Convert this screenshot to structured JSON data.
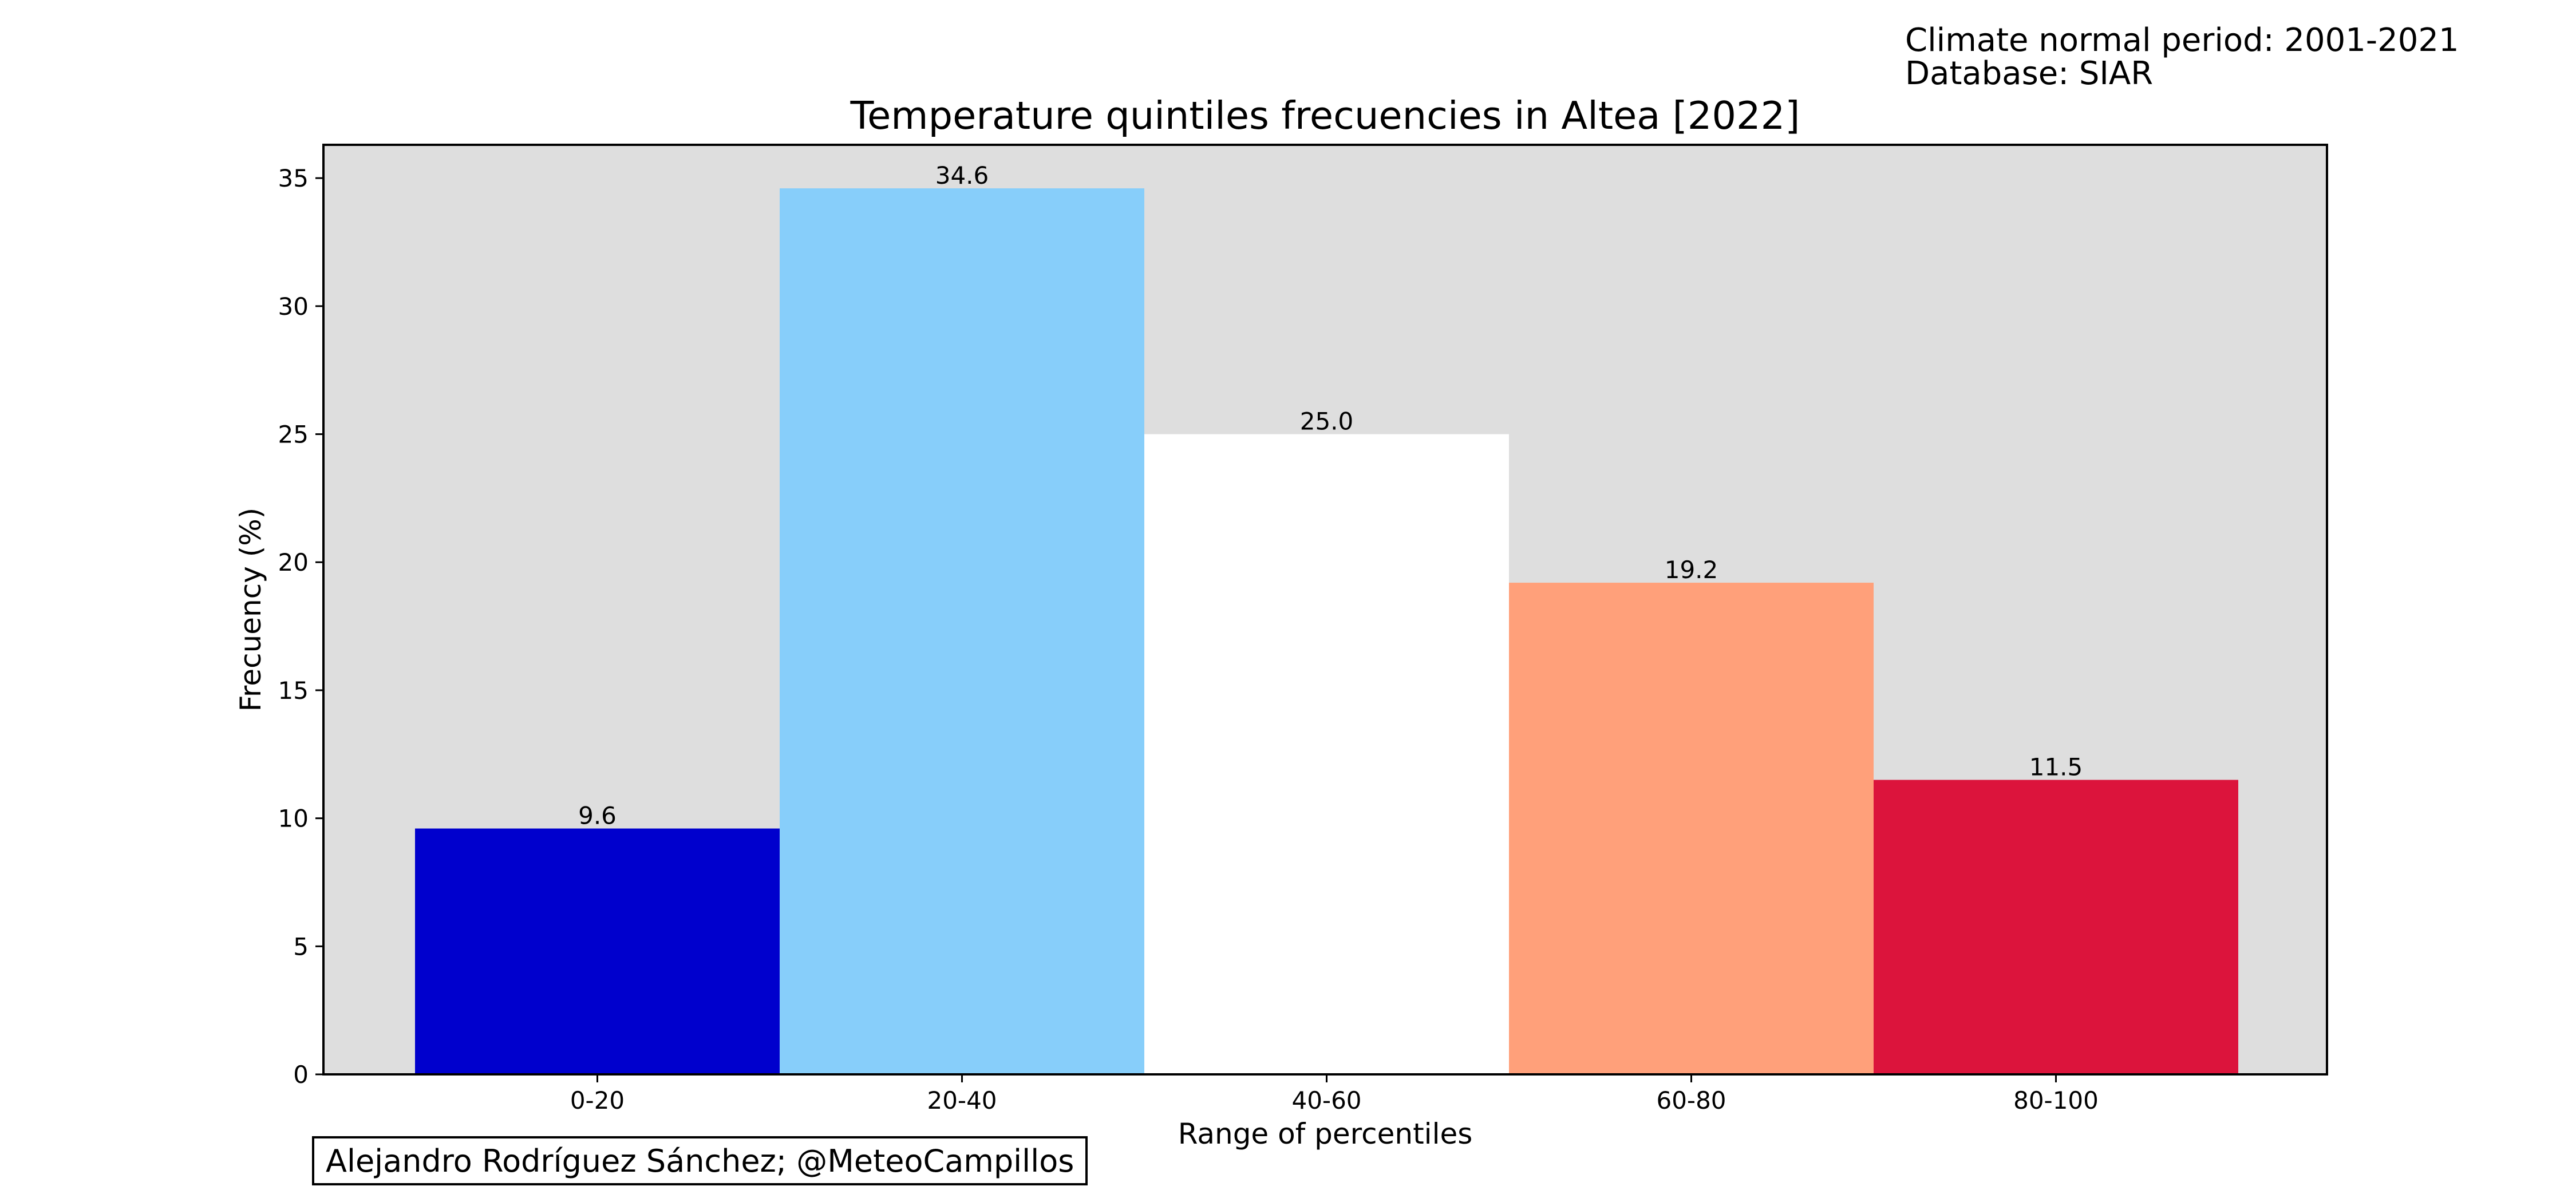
{
  "header": {
    "climate_period": "Climate normal period: 2001-2021",
    "database": "Database: SIAR"
  },
  "credit": "Alejandro Rodríguez Sánchez; @MeteoCampillos",
  "chart_data": {
    "type": "bar",
    "title": "Temperature quintiles frecuencies in Altea [2022]",
    "xlabel": "Range of percentiles",
    "ylabel": "Frecuency (%)",
    "categories": [
      "0-20",
      "20-40",
      "40-60",
      "60-80",
      "80-100"
    ],
    "values": [
      9.6,
      34.6,
      25.0,
      19.2,
      11.5
    ],
    "data_labels": [
      "9.6",
      "34.6",
      "25.0",
      "19.2",
      "11.5"
    ],
    "bar_colors": [
      "#0000cd",
      "#87cefa",
      "#ffffff",
      "#ffa07a",
      "#dc143c"
    ],
    "plot_background": "#dedede",
    "yticks": [
      0,
      5,
      10,
      15,
      20,
      25,
      30,
      35
    ],
    "ylim": [
      0,
      36.3
    ],
    "grid": false,
    "legend": false
  }
}
